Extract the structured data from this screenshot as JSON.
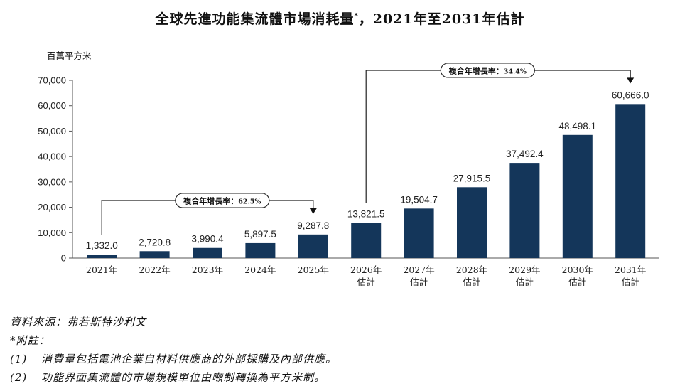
{
  "title": "全球先進功能集流體市場消耗量",
  "title_mark": "*",
  "title_suffix": "，2021年至2031年估計",
  "notes": {
    "source": "資料來源：弗若斯特沙利文",
    "remark_heading": "*附註：",
    "items": [
      {
        "num": "(1)",
        "text": "消費量包括電池企業自材料供應商的外部採購及內部供應。"
      },
      {
        "num": "(2)",
        "text": "功能界面集流體的市場規模單位由噸制轉換為平方米制。"
      }
    ]
  },
  "chart_data": {
    "type": "bar",
    "ylabel": "百萬平方米",
    "ylim": [
      0,
      70000
    ],
    "yticks": [
      "0",
      "10,000",
      "20,000",
      "30,000",
      "40,000",
      "50,000",
      "60,000",
      "70,000"
    ],
    "categories": [
      [
        "2021年"
      ],
      [
        "2022年"
      ],
      [
        "2023年"
      ],
      [
        "2024年"
      ],
      [
        "2025年"
      ],
      [
        "2026年",
        "估計"
      ],
      [
        "2027年",
        "估計"
      ],
      [
        "2028年",
        "估計"
      ],
      [
        "2029年",
        "估計"
      ],
      [
        "2030年",
        "估計"
      ],
      [
        "2031年",
        "估計"
      ]
    ],
    "values": [
      1332.0,
      2720.8,
      3990.4,
      5897.5,
      9287.8,
      13821.5,
      19504.7,
      27915.5,
      37492.4,
      48498.1,
      60666.0
    ],
    "value_labels": [
      "1,332.0",
      "2,720.8",
      "3,990.4",
      "5,897.5",
      "9,287.8",
      "13,821.5",
      "19,504.7",
      "27,915.5",
      "37,492.4",
      "48,498.1",
      "60,666.0"
    ],
    "bar_color": "#14365a",
    "grid": false,
    "annotations": [
      {
        "label": "複合年增長率：",
        "value": "62.5%",
        "from": 0,
        "to": 4
      },
      {
        "label": "複合年增長率：",
        "value": "34.4%",
        "from": 5,
        "to": 10
      }
    ]
  }
}
